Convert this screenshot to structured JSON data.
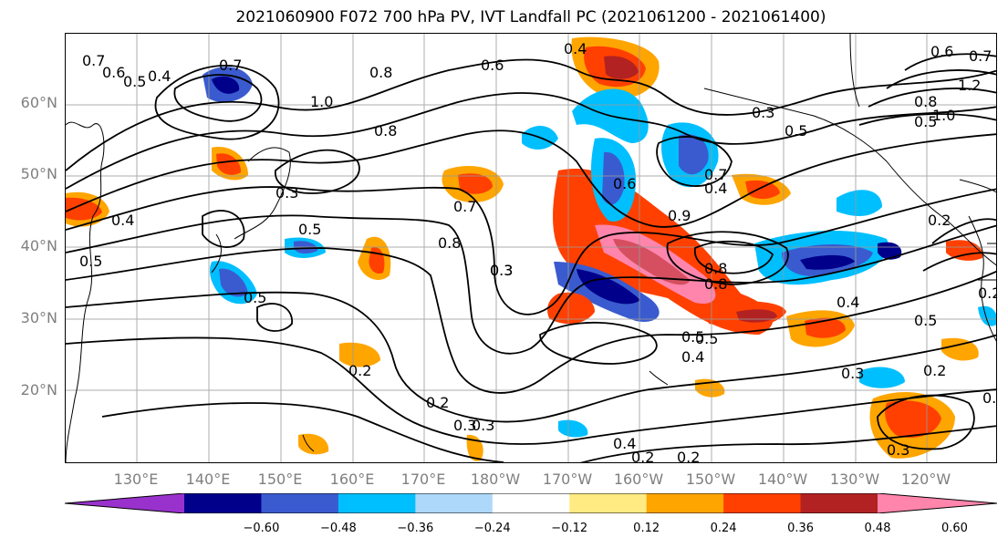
{
  "title": "2021060900 F072 700 hPa PV, IVT Landfall PC (2021061200 - 2021061400)",
  "lat_labels": [
    "60°N",
    "50°N",
    "40°N",
    "30°N",
    "20°N"
  ],
  "lon_labels": [
    "130°E",
    "140°E",
    "150°E",
    "160°E",
    "170°E",
    "180°W",
    "170°W",
    "160°W",
    "150°W",
    "140°W",
    "130°W",
    "120°W"
  ],
  "contour_labels": [
    "0.7",
    "0.6",
    "0.5",
    "0.4",
    "0.7",
    "0.8",
    "1.0",
    "0.6",
    "0.4",
    "0.8",
    "0.3",
    "0.5",
    "0.6",
    "0.7",
    "0.8",
    "1.0",
    "1.2",
    "0.5",
    "0.3",
    "0.4",
    "0.5",
    "0.7",
    "0.8",
    "0.7",
    "0.6",
    "0.8",
    "0.5",
    "0.4",
    "0.3",
    "0.5",
    "0.3",
    "0.2",
    "0.2",
    "0.3",
    "0.4",
    "0.2",
    "0.2",
    "0.3",
    "0.4",
    "0.8",
    "0.9",
    "0.5",
    "0.3",
    "0.2",
    "0.3",
    "0.5",
    "0.4",
    "0.5",
    "0.2",
    "0.2",
    "0.2"
  ],
  "colorbar": {
    "colors": [
      "#9932cc",
      "#00008b",
      "#3a5bcf",
      "#00bfff",
      "#add8f9",
      "#ffffff",
      "#ffeb82",
      "#ffa500",
      "#ff4000",
      "#b22222",
      "#ff85ac"
    ],
    "labels": [
      "−0.60",
      "−0.48",
      "−0.36",
      "−0.24",
      "−0.12",
      "0.12",
      "0.24",
      "0.36",
      "0.48",
      "0.60"
    ]
  }
}
